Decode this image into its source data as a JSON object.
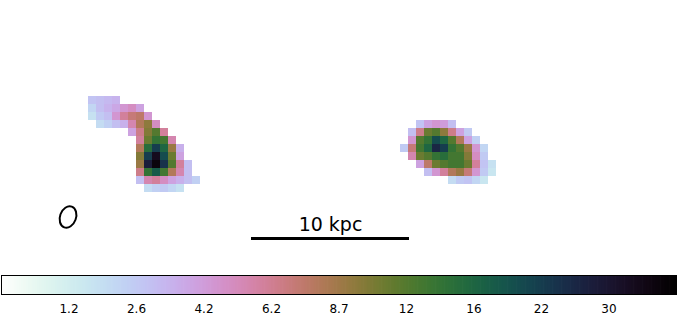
{
  "chart_data": {
    "type": "heatmap",
    "tick_labels": false,
    "color": "cubehelix_r",
    "cells": [
      {
        "row": 12,
        "col": 11,
        "values": [
          2.8,
          3.0,
          3.2,
          3.4
        ]
      },
      {
        "row": 13,
        "col": 11,
        "values": [
          2.2,
          3.0,
          3.4,
          3.8,
          4.5,
          5.0,
          4.0
        ]
      },
      {
        "row": 14,
        "col": 11,
        "values": [
          1.8,
          2.6,
          3.0,
          4.5,
          6.0,
          7.0,
          7.5,
          4.5
        ]
      },
      {
        "row": 15,
        "col": 12,
        "values": [
          2.0,
          2.4,
          3.0,
          3.5,
          5.5,
          8.0,
          9.5,
          5.0
        ]
      },
      {
        "row": 16,
        "col": 16,
        "values": [
          4.0,
          6.5,
          10,
          12,
          6.0
        ]
      },
      {
        "row": 17,
        "col": 17,
        "values": [
          6.0,
          11,
          14,
          13,
          5.5
        ]
      },
      {
        "row": 18,
        "col": 17,
        "values": [
          8.0,
          15,
          22,
          16,
          9.0,
          3.5
        ]
      },
      {
        "row": 19,
        "col": 17,
        "values": [
          10,
          22,
          34,
          20,
          11,
          4.0
        ]
      },
      {
        "row": 20,
        "col": 17,
        "values": [
          9.0,
          28,
          38,
          24,
          12,
          6.0,
          3.0
        ]
      },
      {
        "row": 21,
        "col": 17,
        "values": [
          6.5,
          14,
          18,
          13,
          8.0,
          5.5,
          3.0
        ]
      },
      {
        "row": 22,
        "col": 17,
        "values": [
          3.0,
          5.5,
          6.0,
          5.0,
          4.0,
          3.5,
          3.0,
          2.4
        ]
      },
      {
        "row": 23,
        "col": 18,
        "values": [
          2.0,
          2.4,
          2.6,
          2.2,
          1.8
        ]
      },
      {
        "row": 15,
        "col": 52,
        "values": [
          2.8,
          4.0,
          4.5,
          4.2,
          3.0
        ]
      },
      {
        "row": 16,
        "col": 51,
        "values": [
          3.0,
          6.5,
          11,
          12,
          9.5,
          6.5,
          4.0,
          2.6
        ]
      },
      {
        "row": 17,
        "col": 51,
        "values": [
          4.5,
          12,
          14,
          20,
          16,
          12,
          8.0,
          4.0,
          2.4
        ]
      },
      {
        "row": 18,
        "col": 50,
        "values": [
          2.6,
          7.0,
          13,
          16,
          26,
          22,
          14,
          12,
          9.0,
          4.5,
          2.2
        ]
      },
      {
        "row": 19,
        "col": 51,
        "values": [
          5.5,
          11,
          12,
          14,
          15,
          13,
          13,
          10,
          5.0,
          2.6
        ]
      },
      {
        "row": 20,
        "col": 52,
        "values": [
          4.0,
          7.5,
          11,
          12,
          13,
          13,
          11,
          6.0,
          2.8,
          1.8
        ]
      },
      {
        "row": 21,
        "col": 53,
        "values": [
          3.0,
          4.5,
          6.0,
          8.0,
          9.0,
          7.0,
          4.5,
          2.6,
          1.6
        ]
      },
      {
        "row": 22,
        "col": 56,
        "values": [
          2.0,
          2.6,
          2.8,
          2.2,
          1.6
        ]
      }
    ],
    "colorbar": {
      "range": [
        0,
        41
      ],
      "ticks": [
        1.2,
        2.6,
        4.2,
        6.2,
        8.7,
        12,
        16,
        22,
        30
      ]
    },
    "annotations": [
      {
        "text": "10 kpc"
      }
    ]
  }
}
